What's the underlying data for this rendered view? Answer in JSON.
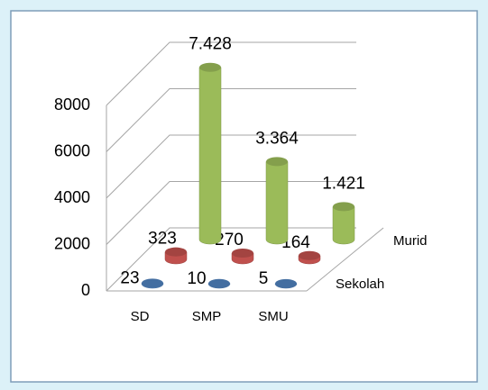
{
  "chart_data": {
    "type": "bar3d",
    "categories": [
      "SD",
      "SMP",
      "SMU"
    ],
    "series": [
      {
        "name": null,
        "color": "#4f81bd",
        "values": [
          23,
          10,
          5
        ]
      },
      {
        "name": "Sekolah",
        "color": "#c0504d",
        "values": [
          323,
          270,
          164
        ]
      },
      {
        "name": "Murid",
        "color": "#9bbb59",
        "values": [
          7428,
          3364,
          1421
        ],
        "value_labels": [
          "7.428",
          "3.364",
          "1.421"
        ]
      }
    ],
    "ylim": [
      0,
      8000
    ],
    "yticks": [
      0,
      2000,
      4000,
      6000,
      8000
    ],
    "grid": true
  }
}
